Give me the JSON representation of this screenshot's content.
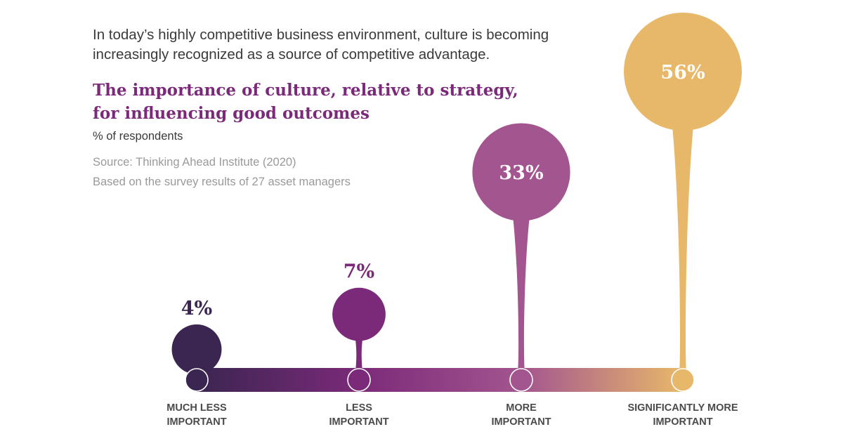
{
  "intro": "In today’s highly competitive business environment, culture is becoming increasingly recognized as a source of competitive advantage.",
  "source_lines": [
    "Source: Thinking Ahead Institute (2020)",
    "Based on the survey results of 27 asset managers"
  ],
  "colors": {
    "title": "#7b2a79",
    "gradient": [
      "#3b2551",
      "#7b2a79",
      "#a3558f",
      "#e8b86a"
    ]
  },
  "chart_data": {
    "type": "bar",
    "title": "The importance of culture, relative to strategy, for influencing good outcomes",
    "ylabel": "% of respondents",
    "categories": [
      [
        "MUCH LESS",
        "IMPORTANT"
      ],
      [
        "LESS",
        "IMPORTANT"
      ],
      [
        "MORE",
        "IMPORTANT"
      ],
      [
        "SIGNIFICANTLY MORE",
        "IMPORTANT"
      ]
    ],
    "values": [
      4,
      7,
      33,
      56
    ],
    "value_labels": [
      "4%",
      "7%",
      "33%",
      "56%"
    ],
    "colors": [
      "#3b2551",
      "#7b2a79",
      "#a3558f",
      "#e8b86a"
    ]
  }
}
